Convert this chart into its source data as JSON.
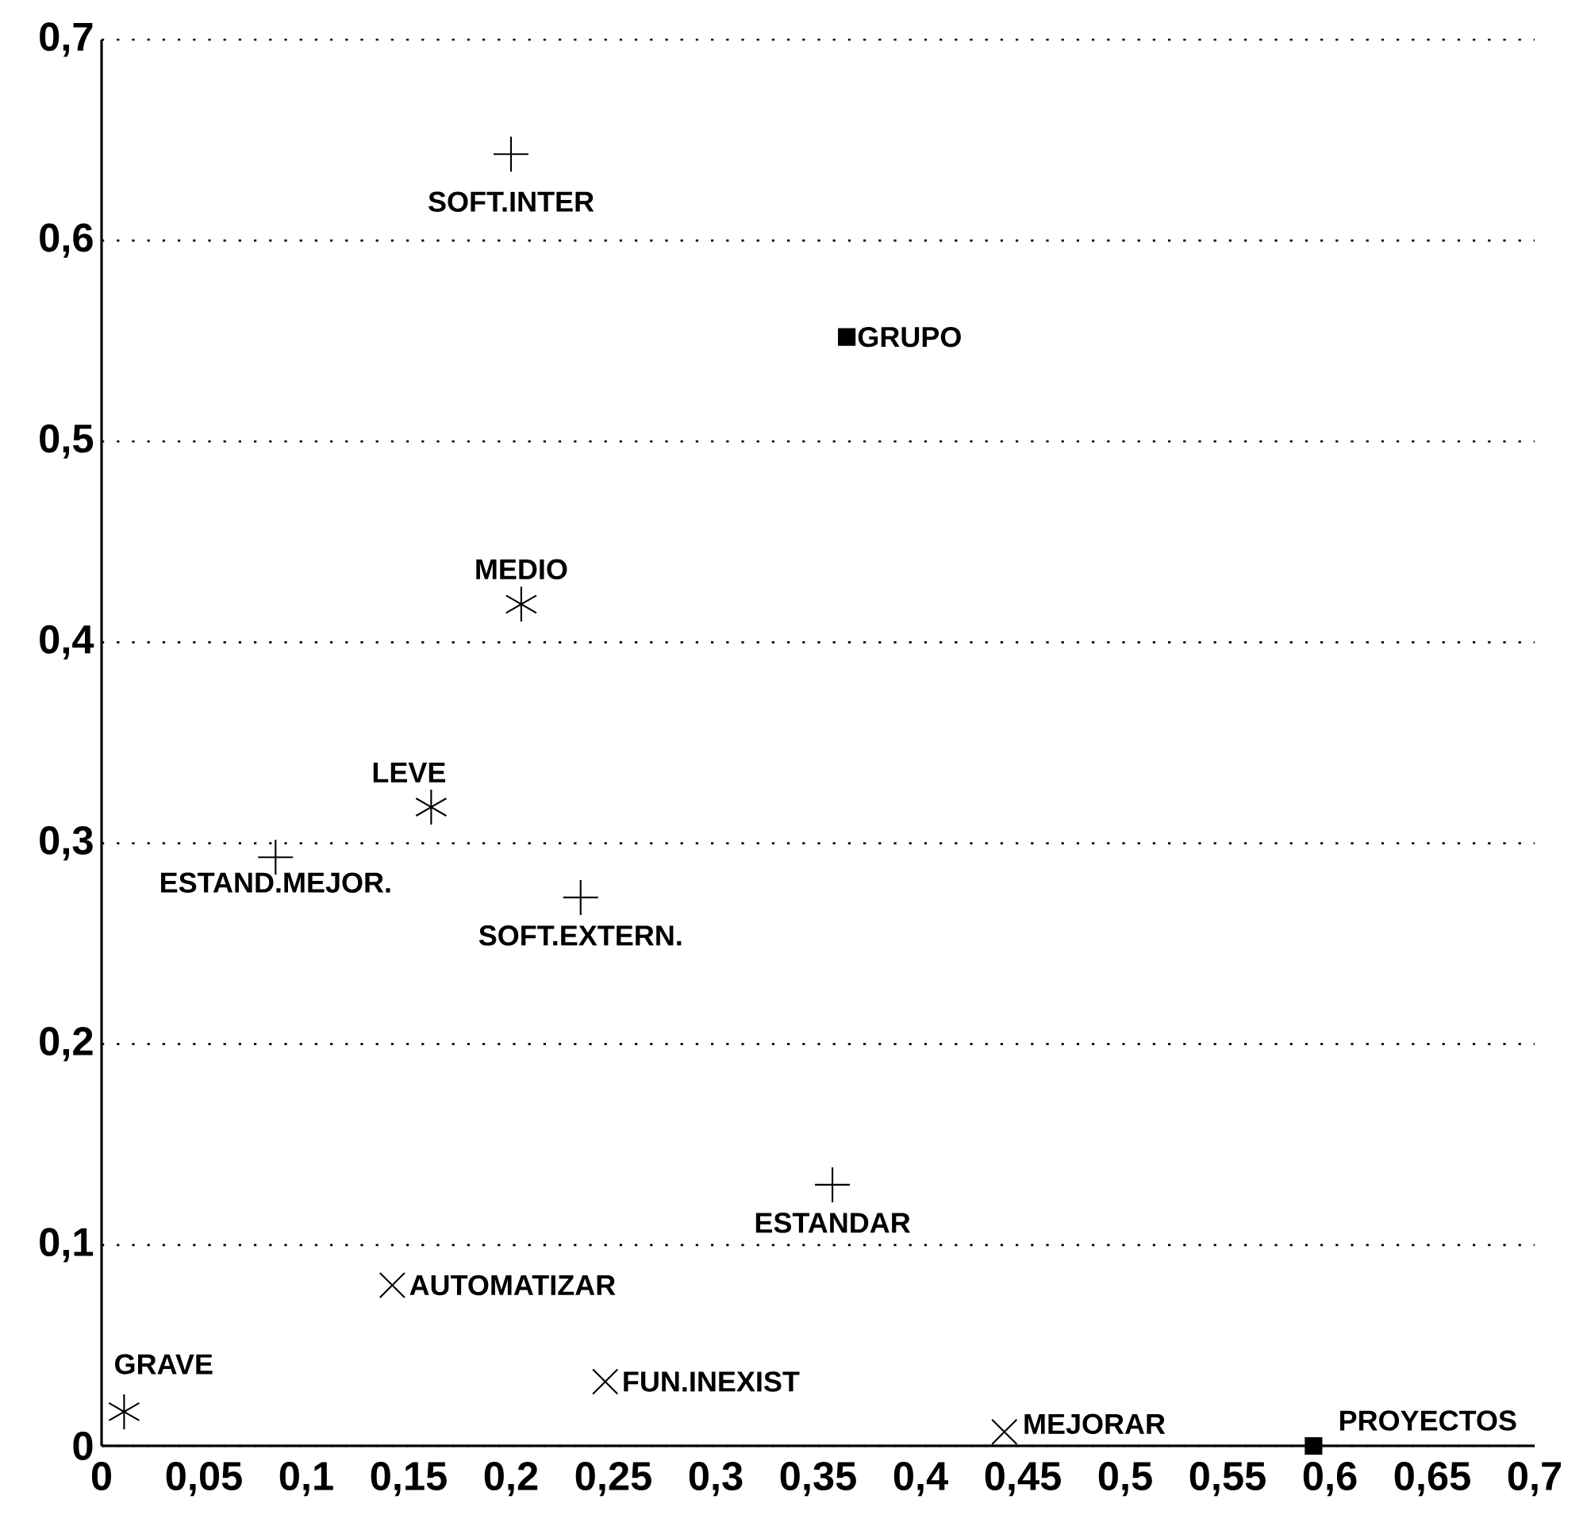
{
  "chart_data": {
    "type": "scatter",
    "series": [
      {
        "color": "#000000",
        "marker": "cross",
        "x": [
          0.2,
          0.085,
          0.234,
          0.357
        ],
        "values": [
          0.643,
          0.293,
          0.273,
          0.13
        ]
      },
      {
        "color": "#000000",
        "marker": "cross",
        "x": [
          0.205,
          0.161,
          0.011
        ],
        "values": [
          0.419,
          0.318,
          0.017
        ]
      },
      {
        "color": "#000000",
        "marker": "cross",
        "x": [
          0.142,
          0.246,
          0.441
        ],
        "values": [
          0.08,
          0.032,
          0.007
        ]
      },
      {
        "color": "#000000",
        "marker": "square",
        "x": [
          0.364,
          0.592
        ],
        "values": [
          0.552,
          0
        ]
      }
    ],
    "annotations": [
      {
        "text": "SOFT.INTER",
        "x": 0.2,
        "y": 0.643
      },
      {
        "text": "ESTAND.MEJOR.",
        "x": 0.085,
        "y": 0.293
      },
      {
        "text": "SOFT.EXTERN.",
        "x": 0.234,
        "y": 0.273
      },
      {
        "text": "ESTANDAR",
        "x": 0.357,
        "y": 0.13
      },
      {
        "text": "MEDIO",
        "x": 0.205,
        "y": 0.419
      },
      {
        "text": "LEVE",
        "x": 0.161,
        "y": 0.318
      },
      {
        "text": "GRAVE",
        "x": 0.011,
        "y": 0.017
      },
      {
        "text": "AUTOMATIZAR",
        "x": 0.142,
        "y": 0.08
      },
      {
        "text": "FUN.INEXIST",
        "x": 0.246,
        "y": 0.032
      },
      {
        "text": "MEJORAR",
        "x": 0.441,
        "y": 0.007
      },
      {
        "text": "GRUPO",
        "x": 0.364,
        "y": 0.552
      },
      {
        "text": "PROYECTOS",
        "x": 0.592,
        "y": 0
      }
    ],
    "xlim": [
      0,
      0.7
    ],
    "ylim": [
      0,
      0.7
    ],
    "xticks": [
      0,
      {
        "value": 0.05,
        "label": "0,05"
      },
      {
        "value": 0.1,
        "label": "0,1"
      },
      {
        "value": 0.15,
        "label": "0,15"
      },
      {
        "value": 0.2,
        "label": "0,2"
      },
      {
        "value": 0.25,
        "label": "0,25"
      },
      {
        "value": 0.3,
        "label": "0,3"
      },
      {
        "value": 0.35,
        "label": "0,35"
      },
      {
        "value": 0.4,
        "label": "0,4"
      },
      {
        "value": 0.45,
        "label": "0,45"
      },
      {
        "value": 0.5,
        "label": "0,5"
      },
      {
        "value": 0.55,
        "label": "0,55"
      },
      {
        "value": 0.6,
        "label": "0,6"
      },
      {
        "value": 0.65,
        "label": "0,65"
      },
      {
        "value": 0.7,
        "label": "0,7"
      }
    ],
    "yticks": [
      0,
      {
        "value": 0.1,
        "label": "0,1"
      },
      {
        "value": 0.2,
        "label": "0,2"
      },
      {
        "value": 0.3,
        "label": "0,3"
      },
      {
        "value": 0.4,
        "label": "0,4"
      },
      {
        "value": 0.5,
        "label": "0,5"
      },
      {
        "value": 0.6,
        "label": "0,6"
      },
      {
        "value": 0.7,
        "label": "0,7"
      }
    ],
    "grid": "y"
  }
}
